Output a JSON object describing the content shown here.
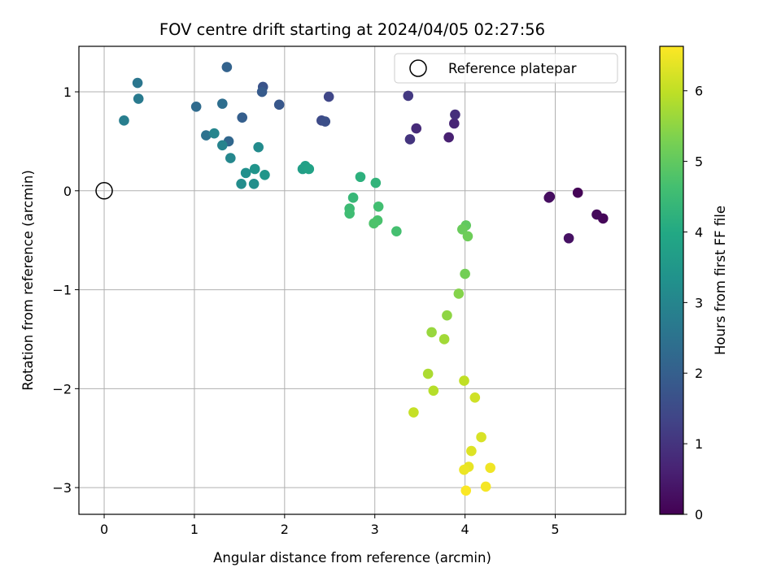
{
  "chart_data": {
    "type": "scatter",
    "title": "FOV centre drift starting at 2024/04/05 02:27:56",
    "xlabel": "Angular distance from reference (arcmin)",
    "ylabel": "Rotation from reference (arcmin)",
    "xlim": [
      -0.28,
      5.78
    ],
    "ylim": [
      -3.27,
      1.46
    ],
    "xticks": [
      0,
      1,
      2,
      3,
      4,
      5
    ],
    "yticks": [
      -3,
      -2,
      -1,
      0,
      1
    ],
    "xtick_labels": [
      "0",
      "1",
      "2",
      "3",
      "4",
      "5"
    ],
    "ytick_labels": [
      "−3",
      "−2",
      "−1",
      "0",
      "1"
    ],
    "grid": true,
    "legend": {
      "position": "top-right",
      "entries": [
        "Reference platepar"
      ]
    },
    "reference_point": {
      "x": 0,
      "y": 0
    },
    "colorbar": {
      "label": "Hours from first FF file",
      "min": 0,
      "max": 6.63,
      "ticks": [
        0,
        1,
        2,
        3,
        4,
        5,
        6
      ],
      "tick_labels": [
        "0",
        "1",
        "2",
        "3",
        "4",
        "5",
        "6"
      ],
      "colormap": "viridis"
    },
    "points": [
      {
        "x": 5.25,
        "y": -0.02,
        "c": 0.05
      },
      {
        "x": 5.53,
        "y": -0.28,
        "c": 0.1
      },
      {
        "x": 5.46,
        "y": -0.24,
        "c": 0.15
      },
      {
        "x": 4.94,
        "y": -0.06,
        "c": 0.2
      },
      {
        "x": 4.93,
        "y": -0.07,
        "c": 0.25
      },
      {
        "x": 5.15,
        "y": -0.48,
        "c": 0.3
      },
      {
        "x": 3.82,
        "y": 0.54,
        "c": 0.6
      },
      {
        "x": 3.88,
        "y": 0.68,
        "c": 0.7
      },
      {
        "x": 3.46,
        "y": 0.63,
        "c": 0.8
      },
      {
        "x": 3.89,
        "y": 0.77,
        "c": 0.9
      },
      {
        "x": 3.39,
        "y": 0.52,
        "c": 1.0
      },
      {
        "x": 3.37,
        "y": 0.96,
        "c": 1.1
      },
      {
        "x": 2.49,
        "y": 0.95,
        "c": 1.4
      },
      {
        "x": 2.41,
        "y": 0.71,
        "c": 1.5
      },
      {
        "x": 2.45,
        "y": 0.7,
        "c": 1.6
      },
      {
        "x": 1.76,
        "y": 1.05,
        "c": 1.7
      },
      {
        "x": 1.94,
        "y": 0.87,
        "c": 1.8
      },
      {
        "x": 1.75,
        "y": 1.0,
        "c": 1.9
      },
      {
        "x": 1.53,
        "y": 0.74,
        "c": 2.0
      },
      {
        "x": 1.36,
        "y": 1.25,
        "c": 2.1
      },
      {
        "x": 1.38,
        "y": 0.5,
        "c": 2.2
      },
      {
        "x": 1.02,
        "y": 0.85,
        "c": 2.3
      },
      {
        "x": 1.31,
        "y": 0.88,
        "c": 2.4
      },
      {
        "x": 1.13,
        "y": 0.56,
        "c": 2.5
      },
      {
        "x": 0.37,
        "y": 1.09,
        "c": 2.6
      },
      {
        "x": 0.38,
        "y": 0.93,
        "c": 2.7
      },
      {
        "x": 0.22,
        "y": 0.71,
        "c": 2.8
      },
      {
        "x": 1.31,
        "y": 0.46,
        "c": 2.95
      },
      {
        "x": 1.22,
        "y": 0.58,
        "c": 3.0
      },
      {
        "x": 1.4,
        "y": 0.33,
        "c": 3.05
      },
      {
        "x": 1.71,
        "y": 0.44,
        "c": 3.15
      },
      {
        "x": 1.52,
        "y": 0.07,
        "c": 3.2
      },
      {
        "x": 1.66,
        "y": 0.07,
        "c": 3.25
      },
      {
        "x": 1.57,
        "y": 0.18,
        "c": 3.3
      },
      {
        "x": 1.67,
        "y": 0.22,
        "c": 3.4
      },
      {
        "x": 1.78,
        "y": 0.16,
        "c": 3.45
      },
      {
        "x": 2.2,
        "y": 0.22,
        "c": 3.7
      },
      {
        "x": 2.23,
        "y": 0.25,
        "c": 3.75
      },
      {
        "x": 2.27,
        "y": 0.22,
        "c": 3.8
      },
      {
        "x": 2.84,
        "y": 0.14,
        "c": 4.2
      },
      {
        "x": 3.01,
        "y": 0.08,
        "c": 4.3
      },
      {
        "x": 2.76,
        "y": -0.07,
        "c": 4.4
      },
      {
        "x": 2.72,
        "y": -0.18,
        "c": 4.5
      },
      {
        "x": 2.72,
        "y": -0.23,
        "c": 4.55
      },
      {
        "x": 3.04,
        "y": -0.16,
        "c": 4.6
      },
      {
        "x": 3.24,
        "y": -0.41,
        "c": 4.65
      },
      {
        "x": 3.03,
        "y": -0.3,
        "c": 4.7
      },
      {
        "x": 2.99,
        "y": -0.33,
        "c": 4.75
      },
      {
        "x": 4.01,
        "y": -0.35,
        "c": 5.0
      },
      {
        "x": 3.97,
        "y": -0.39,
        "c": 5.1
      },
      {
        "x": 4.03,
        "y": -0.46,
        "c": 5.15
      },
      {
        "x": 4.0,
        "y": -0.84,
        "c": 5.2
      },
      {
        "x": 3.93,
        "y": -1.04,
        "c": 5.4
      },
      {
        "x": 3.8,
        "y": -1.26,
        "c": 5.5
      },
      {
        "x": 3.63,
        "y": -1.43,
        "c": 5.6
      },
      {
        "x": 3.77,
        "y": -1.5,
        "c": 5.7
      },
      {
        "x": 3.59,
        "y": -1.85,
        "c": 5.8
      },
      {
        "x": 3.65,
        "y": -2.02,
        "c": 5.9
      },
      {
        "x": 3.99,
        "y": -1.92,
        "c": 6.0
      },
      {
        "x": 3.43,
        "y": -2.24,
        "c": 6.05
      },
      {
        "x": 4.11,
        "y": -2.09,
        "c": 6.15
      },
      {
        "x": 4.18,
        "y": -2.49,
        "c": 6.25
      },
      {
        "x": 4.07,
        "y": -2.63,
        "c": 6.3
      },
      {
        "x": 4.04,
        "y": -2.79,
        "c": 6.4
      },
      {
        "x": 3.99,
        "y": -2.82,
        "c": 6.45
      },
      {
        "x": 4.28,
        "y": -2.8,
        "c": 6.5
      },
      {
        "x": 4.23,
        "y": -2.99,
        "c": 6.55
      },
      {
        "x": 4.01,
        "y": -3.03,
        "c": 6.6
      }
    ]
  }
}
